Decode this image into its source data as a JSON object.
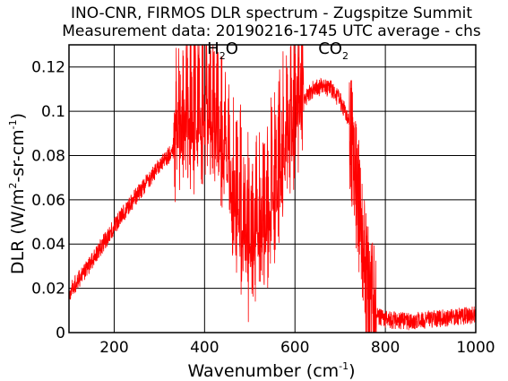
{
  "chart_data": {
    "type": "line",
    "title": "INO-CNR, FIRMOS DLR spectrum - Zugspitze Summit",
    "subtitle": "Measurement data: 20190216-1745 UTC average - chs",
    "xlabel": {
      "main": "Wavenumber (cm",
      "sup": "-1",
      "tail": ")"
    },
    "ylabel": {
      "main": "DLR (W/m",
      "sup1": "2",
      "mid": "-sr-cm",
      "sup2": "-1",
      "tail": ")"
    },
    "xlim": [
      100,
      1000
    ],
    "ylim": [
      0,
      0.13
    ],
    "xticks": [
      200,
      400,
      600,
      800,
      1000
    ],
    "xtick_labels": [
      "200",
      "400",
      "600",
      "800",
      "1000"
    ],
    "yticks": [
      0,
      0.02,
      0.04,
      0.06,
      0.08,
      0.1,
      0.12
    ],
    "ytick_labels": [
      "0",
      "0.02",
      "0.04",
      "0.06",
      "0.08",
      "0.1",
      "0.12"
    ],
    "grid": true,
    "line_color": "#ff0000",
    "annotations": [
      {
        "base": "H",
        "sub": "2",
        "tail": "O",
        "x": 440,
        "y": 0.126
      },
      {
        "base": "CO",
        "sub": "2",
        "tail": "",
        "x": 685,
        "y": 0.126
      }
    ],
    "series": [
      {
        "x": [
          100,
          150,
          200,
          250,
          280,
          300,
          320,
          340,
          360,
          380,
          400,
          420,
          440,
          460,
          480,
          500,
          520,
          540,
          560,
          580,
          600,
          620,
          640,
          660,
          680,
          700,
          720,
          740,
          760,
          780,
          800,
          850,
          900,
          950,
          1000
        ],
        "y": [
          0.018,
          0.032,
          0.048,
          0.062,
          0.07,
          0.075,
          0.08,
          0.083,
          0.085,
          0.086,
          0.09,
          0.085,
          0.075,
          0.06,
          0.04,
          0.03,
          0.035,
          0.045,
          0.06,
          0.075,
          0.09,
          0.105,
          0.11,
          0.111,
          0.11,
          0.105,
          0.095,
          0.06,
          0.02,
          0.008,
          0.006,
          0.005,
          0.006,
          0.007,
          0.008
        ]
      }
    ]
  }
}
